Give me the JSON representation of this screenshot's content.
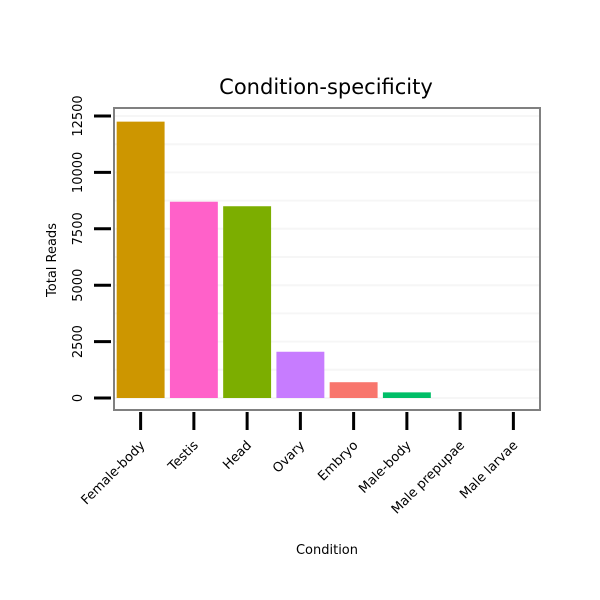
{
  "chart_data": {
    "type": "bar",
    "title": "Condition-specificity",
    "xlabel": "Condition",
    "ylabel": "Total Reads",
    "categories": [
      "Female-body",
      "Testis",
      "Head",
      "Ovary",
      "Embryo",
      "Male-body",
      "Male prepupae",
      "Male larvae"
    ],
    "values": [
      12250,
      8700,
      8500,
      2050,
      700,
      250,
      0,
      0
    ],
    "colors": [
      "#cd9600",
      "#ff61c9",
      "#7cae00",
      "#c77cff",
      "#f8766d",
      "#00be67",
      "#00a9ff",
      "#00bfc4"
    ],
    "ylim": [
      0,
      12500
    ],
    "yticks": [
      0,
      2500,
      5000,
      7500,
      10000,
      12500
    ],
    "grid": true,
    "legend": "none"
  }
}
